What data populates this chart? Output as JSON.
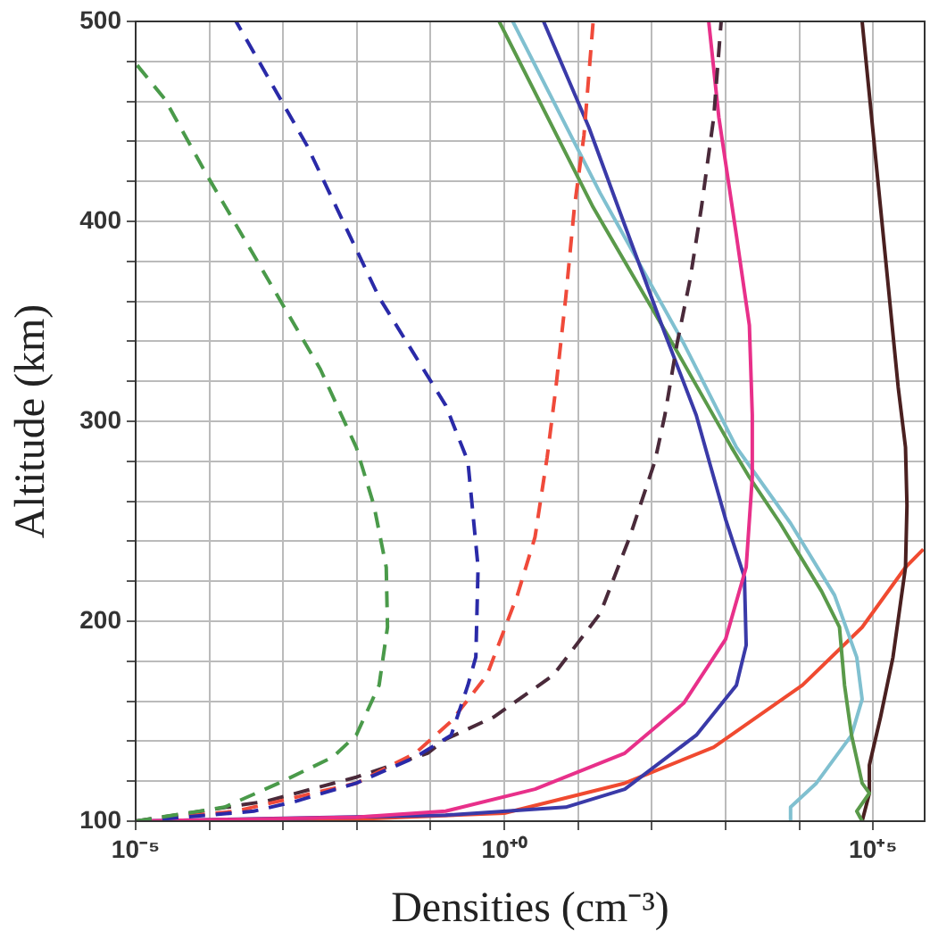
{
  "chart_data": {
    "type": "line",
    "xlabel": "Densities (cm⁻³)",
    "ylabel": "Altitude (km)",
    "log": "x",
    "grid": true,
    "legend": false,
    "marker": "none",
    "xlim": [
      1e-05,
      500000.0
    ],
    "ylim": [
      100,
      500
    ],
    "xticks": [
      {
        "value": 1e-05,
        "label": "10⁻⁵"
      },
      {
        "value": 0.0001,
        "label": null
      },
      {
        "value": 0.001,
        "label": null
      },
      {
        "value": 0.01,
        "label": null
      },
      {
        "value": 0.1,
        "label": null
      },
      {
        "value": 1,
        "label": "10⁺⁰"
      },
      {
        "value": 10,
        "label": null
      },
      {
        "value": 100,
        "label": null
      },
      {
        "value": 1000,
        "label": null
      },
      {
        "value": 10000,
        "label": null
      },
      {
        "value": 100000,
        "label": "10⁺⁵"
      }
    ],
    "yticks": [
      100,
      {
        "value": 120,
        "label": null
      },
      {
        "value": 140,
        "label": null
      },
      {
        "value": 160,
        "label": null
      },
      {
        "value": 180,
        "label": null
      },
      200,
      {
        "value": 220,
        "label": null
      },
      {
        "value": 240,
        "label": null
      },
      {
        "value": 260,
        "label": null
      },
      {
        "value": 280,
        "label": null
      },
      300,
      {
        "value": 320,
        "label": null
      },
      {
        "value": 340,
        "label": null
      },
      {
        "value": 360,
        "label": null
      },
      {
        "value": 380,
        "label": null
      },
      400,
      {
        "value": 420,
        "label": null
      },
      {
        "value": 440,
        "label": null
      },
      {
        "value": 460,
        "label": null
      },
      {
        "value": 480,
        "label": null
      },
      500
    ],
    "series": [
      {
        "color": "#4a9a4a",
        "line_style": "dashed",
        "x": [
          1e-05,
          0.00016,
          0.00087,
          0.0047,
          0.0098,
          0.02,
          0.026,
          0.025,
          0.017,
          0.0098,
          0.0032,
          0.0005,
          9.3e-05,
          2.5e-05,
          1e-05
        ],
        "values": [
          100,
          107,
          119,
          132,
          143,
          168,
          197,
          227,
          258,
          287,
          326,
          377,
          423,
          461,
          479
        ]
      },
      {
        "color": "#2a2aa8",
        "line_style": "dashed",
        "x": [
          1e-05,
          0.0004,
          0.0015,
          0.0098,
          0.062,
          0.19,
          0.32,
          0.41,
          0.44,
          0.32,
          0.16,
          0.02,
          0.0021,
          0.00023
        ],
        "values": [
          100,
          105,
          110,
          119,
          132,
          143,
          168,
          182,
          227,
          280,
          308,
          362,
          438,
          500
        ]
      },
      {
        "color": "#f04a3a",
        "line_style": "dashed",
        "x": [
          1e-05,
          0.00023,
          0.0015,
          0.0098,
          0.062,
          0.19,
          0.58,
          1.5,
          2.6,
          3.8,
          5,
          6.8,
          8.9,
          12,
          16
        ],
        "values": [
          100,
          105,
          112,
          119,
          134,
          150,
          173,
          213,
          242,
          282,
          317,
          362,
          407,
          443,
          500
        ]
      },
      {
        "color": "#4a2a3a",
        "line_style": "dashed",
        "x": [
          1e-05,
          0.00059,
          0.0098,
          0.091,
          0.16,
          0.71,
          4.6,
          20,
          50,
          110,
          150,
          220,
          330,
          470,
          690,
          870
        ],
        "values": [
          100,
          110,
          122,
          134,
          141,
          152,
          173,
          204,
          242,
          280,
          303,
          339,
          371,
          407,
          452,
          500
        ]
      },
      {
        "color": "#e8308a",
        "line_style": "solid",
        "x": [
          1e-05,
          0.01,
          0.16,
          2.6,
          43,
          270,
          1000,
          1900,
          2300,
          2300,
          2100,
          1400,
          810,
          590
        ],
        "values": [
          100,
          102,
          105,
          116,
          134,
          159,
          191,
          227,
          272,
          303,
          348,
          393,
          452,
          500
        ]
      },
      {
        "color": "#3a3aa8",
        "line_style": "solid",
        "x": [
          1e-05,
          0.16,
          6.8,
          43,
          400,
          1400,
          1900,
          1800,
          1000,
          620,
          400,
          150,
          43,
          14,
          3.4
        ],
        "values": [
          100,
          103,
          107,
          116,
          143,
          168,
          188,
          222,
          251,
          278,
          303,
          344,
          398,
          447,
          500
        ]
      },
      {
        "color": "#5a9a4a",
        "line_style": "solid",
        "x": [
          71000,
          60000,
          89000,
          71000,
          51000,
          41000,
          35000,
          20000,
          5500,
          2100,
          1200,
          190,
          16,
          0.85
        ],
        "values": [
          100,
          105,
          114,
          119,
          143,
          168,
          197,
          215,
          249,
          272,
          287,
          339,
          407,
          500
        ]
      },
      {
        "color": "#80c0d0",
        "line_style": "solid",
        "x": [
          7600,
          7600,
          17000,
          51000,
          71000,
          60000,
          30000,
          7600,
          1400,
          270,
          20,
          1.3
        ],
        "values": [
          100,
          107,
          119,
          143,
          161,
          182,
          213,
          249,
          287,
          339,
          414,
          500
        ]
      },
      {
        "color": "#4a2020",
        "line_style": "solid",
        "x": [
          71000,
          89000,
          89000,
          126000,
          186000,
          275000,
          288000,
          275000,
          219000,
          126000,
          71000
        ],
        "values": [
          100,
          114,
          128,
          152,
          182,
          227,
          258,
          287,
          317,
          407,
          500
        ]
      },
      {
        "color": "#f04a30",
        "line_style": "solid",
        "x": [
          1e-05,
          0.01,
          1,
          43,
          690,
          11000,
          71000,
          275000,
          480000
        ],
        "values": [
          100,
          101,
          104,
          119,
          137,
          168,
          197,
          227,
          236
        ]
      }
    ]
  }
}
